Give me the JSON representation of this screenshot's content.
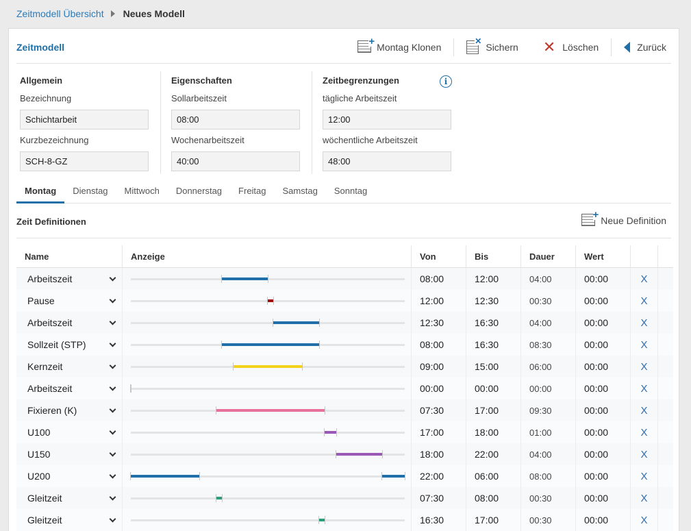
{
  "breadcrumb": {
    "parent": "Zeitmodell Übersicht",
    "current": "Neues Modell"
  },
  "header": {
    "title": "Zeitmodell",
    "actions": {
      "clone": "Montag Klonen",
      "save": "Sichern",
      "delete": "Löschen",
      "back": "Zurück"
    }
  },
  "groups": {
    "allgemein": {
      "title": "Allgemein",
      "bez_label": "Bezeichnung",
      "bez_value": "Schichtarbeit",
      "kurz_label": "Kurzbezeichnung",
      "kurz_value": "SCH-8-GZ"
    },
    "eigenschaften": {
      "title": "Eigenschaften",
      "soll_label": "Sollarbeitszeit",
      "soll_value": "08:00",
      "woche_label": "Wochenarbeitszeit",
      "woche_value": "40:00"
    },
    "zeitbegrenzungen": {
      "title": "Zeitbegrenzungen",
      "taeglich_label": "tägliche Arbeitszeit",
      "taeglich_value": "12:00",
      "woechentlich_label": "wöchentliche Arbeitszeit",
      "woechentlich_value": "48:00"
    }
  },
  "tabs": [
    "Montag",
    "Dienstag",
    "Mittwoch",
    "Donnerstag",
    "Freitag",
    "Samstag",
    "Sonntag"
  ],
  "active_tab": 0,
  "section": {
    "title": "Zeit Definitionen",
    "new_label": "Neue Definition"
  },
  "columns": {
    "name": "Name",
    "anzeige": "Anzeige",
    "von": "Von",
    "bis": "Bis",
    "dauer": "Dauer",
    "wert": "Wert"
  },
  "colors": {
    "accent": "#1f6fa8",
    "delete": "#c0392b"
  },
  "rows": [
    {
      "name": "Arbeitszeit",
      "von": "08:00",
      "bis": "12:00",
      "dauer": "04:00",
      "wert": "00:00",
      "color": "#1f6fa8",
      "delete": "X"
    },
    {
      "name": "Pause",
      "von": "12:00",
      "bis": "12:30",
      "dauer": "00:30",
      "wert": "00:00",
      "color": "#a01010",
      "delete": "X"
    },
    {
      "name": "Arbeitszeit",
      "von": "12:30",
      "bis": "16:30",
      "dauer": "04:00",
      "wert": "00:00",
      "color": "#1f6fa8",
      "delete": "X"
    },
    {
      "name": "Sollzeit (STP)",
      "von": "08:00",
      "bis": "16:30",
      "dauer": "08:30",
      "wert": "00:00",
      "color": "#1f6fa8",
      "delete": "X"
    },
    {
      "name": "Kernzeit",
      "von": "09:00",
      "bis": "15:00",
      "dauer": "06:00",
      "wert": "00:00",
      "color": "#f2d21b",
      "delete": "X"
    },
    {
      "name": "Arbeitszeit",
      "von": "00:00",
      "bis": "00:00",
      "dauer": "00:00",
      "wert": "00:00",
      "color": "#1f6fa8",
      "delete": "X"
    },
    {
      "name": "Fixieren (K)",
      "von": "07:30",
      "bis": "17:00",
      "dauer": "09:30",
      "wert": "00:00",
      "color": "#e8719a",
      "delete": "X"
    },
    {
      "name": "U100",
      "von": "17:00",
      "bis": "18:00",
      "dauer": "01:00",
      "wert": "00:00",
      "color": "#9b59b6",
      "delete": "X"
    },
    {
      "name": "U150",
      "von": "18:00",
      "bis": "22:00",
      "dauer": "04:00",
      "wert": "00:00",
      "color": "#9b59b6",
      "delete": "X"
    },
    {
      "name": "U200",
      "von": "22:00",
      "bis": "06:00",
      "dauer": "08:00",
      "wert": "00:00",
      "color": "#1f6fa8",
      "delete": "X"
    },
    {
      "name": "Gleitzeit",
      "von": "07:30",
      "bis": "08:00",
      "dauer": "00:30",
      "wert": "00:00",
      "color": "#2a9d7a",
      "delete": "X"
    },
    {
      "name": "Gleitzeit",
      "von": "16:30",
      "bis": "17:00",
      "dauer": "00:30",
      "wert": "00:00",
      "color": "#2a9d7a",
      "delete": "X"
    }
  ]
}
